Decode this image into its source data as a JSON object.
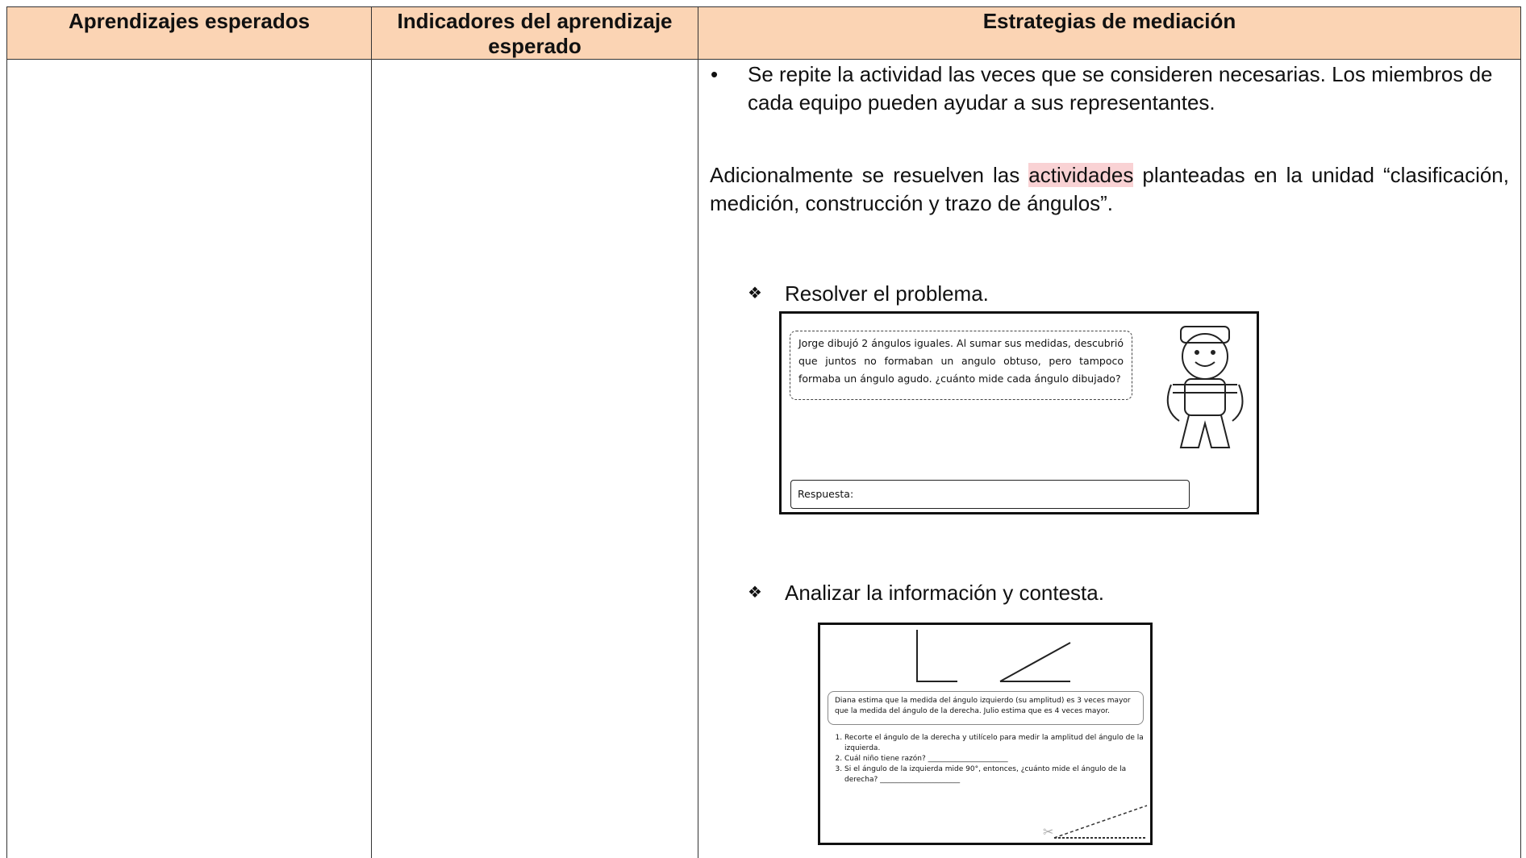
{
  "table": {
    "headers": [
      "Aprendizajes esperados",
      "Indicadores del aprendizaje esperado",
      "Estrategias de mediación"
    ]
  },
  "content": {
    "bullet": "Se repite la actividad las veces que se consideren necesarias. Los miembros de cada equipo pueden ayudar a sus representantes.",
    "paragraph": {
      "before": "Adicionalmente se resuelven las ",
      "highlight": "actividades",
      "after": " planteadas en la unidad “clasificación, medición, construcción y trazo de ángulos”."
    },
    "items": [
      {
        "label": "Resolver el problema.",
        "worksheet": {
          "problem": "Jorge dibujó 2 ángulos iguales. Al sumar sus medidas, descubrió que juntos no formaban un angulo obtuso, pero tampoco formaba un ángulo agudo. ¿cuánto mide cada ángulo dibujado?",
          "answer": "Respuesta:"
        }
      },
      {
        "label": "Analizar la información y contesta.",
        "worksheet": {
          "statement": "Diana estima que la medida del ángulo izquierdo (su amplitud) es 3 veces mayor que la medida del ángulo de la derecha. Julio estima que es 4 veces mayor.",
          "questions": [
            "Recorte el ángulo de la derecha y utilícelo para medir la amplitud del ángulo de la izquierda.",
            "Cuál niño tiene razón? ______________________",
            "Si el ángulo de la izquierda mide 90°, entonces, ¿cuánto mide el ángulo de la derecha? ______________________"
          ]
        }
      }
    ]
  }
}
